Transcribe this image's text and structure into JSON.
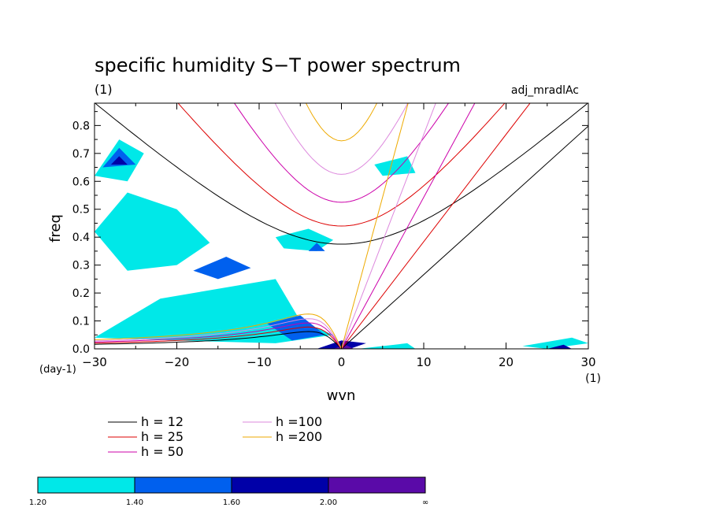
{
  "chart_data": {
    "type": "contour",
    "title": "specific humidity S−T power spectrum",
    "subtitle_left": "(1)",
    "subtitle_right": "adj_mradlAc",
    "xlabel": "wvn",
    "ylabel": "freq",
    "x_unit": "(1)",
    "y_unit": "(day-1)",
    "xlim": [
      -30,
      30
    ],
    "ylim": [
      0,
      0.88
    ],
    "x_ticks": [
      -30,
      -20,
      -10,
      0,
      10,
      20,
      30
    ],
    "x_tick_labels": [
      "−30",
      "−20",
      "−10",
      "0",
      "10",
      "20",
      "30"
    ],
    "y_ticks": [
      0.0,
      0.1,
      0.2,
      0.3,
      0.4,
      0.5,
      0.6,
      0.7,
      0.8
    ],
    "y_tick_labels": [
      "0.0",
      "0.1",
      "0.2",
      "0.3",
      "0.4",
      "0.5",
      "0.6",
      "0.7",
      "0.8"
    ],
    "dispersion_curves": [
      {
        "h_label": "h = 12",
        "color": "#000000",
        "kelvin_slope": 0.0266,
        "ig_min_freq": 0.375,
        "er_max_freq": 0.062
      },
      {
        "h_label": "h = 25",
        "color": "#dd0000",
        "kelvin_slope": 0.0384,
        "ig_min_freq": 0.44,
        "er_max_freq": 0.078
      },
      {
        "h_label": "h = 50",
        "color": "#cc00aa",
        "kelvin_slope": 0.0543,
        "ig_min_freq": 0.525,
        "er_max_freq": 0.093
      },
      {
        "h_label": "h =100",
        "color": "#dd88dd",
        "kelvin_slope": 0.0768,
        "ig_min_freq": 0.625,
        "er_max_freq": 0.108
      },
      {
        "h_label": "h =200",
        "color": "#eeaa00",
        "kelvin_slope": 0.1086,
        "ig_min_freq": 0.745,
        "er_max_freq": 0.125
      }
    ],
    "contour_levels": [
      "1.20",
      "1.40",
      "1.60",
      "2.00",
      "∞"
    ],
    "contour_colors": [
      "#00e8e8",
      "#0060ee",
      "#0000a8",
      "#5a0aa8"
    ],
    "contour_regions": [
      {
        "level": 0,
        "points": [
          [
            -30,
            0.04
          ],
          [
            -22,
            0.18
          ],
          [
            -14,
            0.22
          ],
          [
            -8,
            0.25
          ],
          [
            -5,
            0.1
          ],
          [
            -1,
            0.05
          ],
          [
            -8,
            0.02
          ],
          [
            -20,
            0.03
          ]
        ]
      },
      {
        "level": 0,
        "points": [
          [
            -30,
            0.42
          ],
          [
            -26,
            0.56
          ],
          [
            -20,
            0.5
          ],
          [
            -16,
            0.38
          ],
          [
            -20,
            0.3
          ],
          [
            -26,
            0.28
          ]
        ]
      },
      {
        "level": 0,
        "points": [
          [
            -30,
            0.62
          ],
          [
            -27,
            0.75
          ],
          [
            -24,
            0.7
          ],
          [
            -26,
            0.6
          ]
        ]
      },
      {
        "level": 0,
        "points": [
          [
            -8,
            0.4
          ],
          [
            -4,
            0.43
          ],
          [
            -1,
            0.39
          ],
          [
            -3,
            0.35
          ],
          [
            -7,
            0.36
          ]
        ]
      },
      {
        "level": 0,
        "points": [
          [
            4,
            0.66
          ],
          [
            8,
            0.69
          ],
          [
            9,
            0.63
          ],
          [
            5,
            0.62
          ]
        ]
      },
      {
        "level": 0,
        "points": [
          [
            22,
            0.01
          ],
          [
            28,
            0.04
          ],
          [
            30,
            0.02
          ],
          [
            25,
            0.0
          ]
        ]
      },
      {
        "level": 0,
        "points": [
          [
            2,
            0.0
          ],
          [
            8,
            0.02
          ],
          [
            9,
            0.0
          ]
        ]
      },
      {
        "level": 1,
        "points": [
          [
            -18,
            0.28
          ],
          [
            -14,
            0.33
          ],
          [
            -11,
            0.29
          ],
          [
            -15,
            0.25
          ]
        ]
      },
      {
        "level": 1,
        "points": [
          [
            -29,
            0.65
          ],
          [
            -27,
            0.72
          ],
          [
            -25,
            0.66
          ]
        ]
      },
      {
        "level": 1,
        "points": [
          [
            -9,
            0.09
          ],
          [
            -5,
            0.12
          ],
          [
            -2,
            0.05
          ],
          [
            -6,
            0.03
          ]
        ]
      },
      {
        "level": 1,
        "points": [
          [
            -4,
            0.35
          ],
          [
            -3,
            0.38
          ],
          [
            -2,
            0.35
          ]
        ]
      },
      {
        "level": 2,
        "points": [
          [
            -3,
            0.0
          ],
          [
            0,
            0.03
          ],
          [
            3,
            0.02
          ],
          [
            1,
            0.0
          ]
        ]
      },
      {
        "level": 2,
        "points": [
          [
            -28,
            0.66
          ],
          [
            -27,
            0.69
          ],
          [
            -26,
            0.66
          ]
        ]
      },
      {
        "level": 2,
        "points": [
          [
            25,
            0.0
          ],
          [
            27,
            0.015
          ],
          [
            28,
            0.0
          ]
        ]
      },
      {
        "level": 3,
        "points": [
          [
            -1,
            0.0
          ],
          [
            0.5,
            0.015
          ],
          [
            1.5,
            0.0
          ]
        ]
      }
    ]
  },
  "legend": {
    "lines": [
      {
        "label": "h = 12",
        "color": "#000000"
      },
      {
        "label": "h = 25",
        "color": "#dd0000"
      },
      {
        "label": "h = 50",
        "color": "#cc00aa"
      },
      {
        "label": "h =100",
        "color": "#dd88dd"
      },
      {
        "label": "h =200",
        "color": "#eeaa00"
      }
    ]
  }
}
